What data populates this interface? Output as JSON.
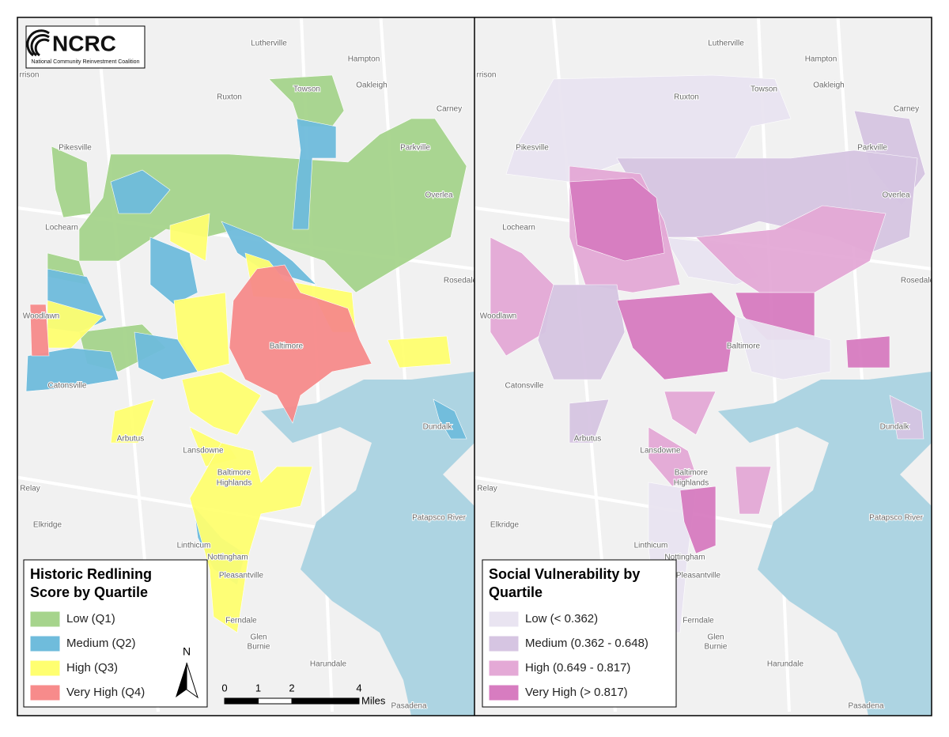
{
  "logo": {
    "name": "NCRC",
    "subtitle": "National Community Reinvestment Coalition"
  },
  "place_labels": [
    "rrison",
    "Lutherville",
    "Hampton",
    "Oakleigh",
    "Towson",
    "Ruxton",
    "Carney",
    "Pikesville",
    "Parkville",
    "Overlea",
    "Lochearn",
    "Rosedale",
    "Woodlawn",
    "Baltimore",
    "Catonsville",
    "Arbutus",
    "Dundalk",
    "Lansdowne",
    "Baltimore",
    "Highlands",
    "Relay",
    "Elkridge",
    "Linthicum",
    "Nottingham",
    "Pleasantville",
    "Ferndale",
    "Glen",
    "Burnie",
    "Harundale",
    "Patapsco River",
    "Pasadena"
  ],
  "left_legend": {
    "title": "Historic Redlining Score by Quartile",
    "items": [
      {
        "label": "Low (Q1)",
        "color": "#a6d48c"
      },
      {
        "label": "Medium (Q2)",
        "color": "#6fbcdc"
      },
      {
        "label": "High (Q3)",
        "color": "#ffff70"
      },
      {
        "label": "Very High (Q4)",
        "color": "#f78b8b"
      }
    ]
  },
  "right_legend": {
    "title": "Social Vulnerability by Quartile",
    "items": [
      {
        "label": "Low (< 0.362)",
        "color": "#e9e4f1"
      },
      {
        "label": "Medium (0.362 - 0.648)",
        "color": "#d6c5e2"
      },
      {
        "label": "High (0.649 - 0.817)",
        "color": "#e4a9d6"
      },
      {
        "label": "Very High (> 0.817)",
        "color": "#d77cc0"
      }
    ]
  },
  "north_arrow": "N",
  "scale_bar": {
    "ticks": [
      0,
      1,
      2,
      4
    ],
    "unit": "Miles"
  }
}
